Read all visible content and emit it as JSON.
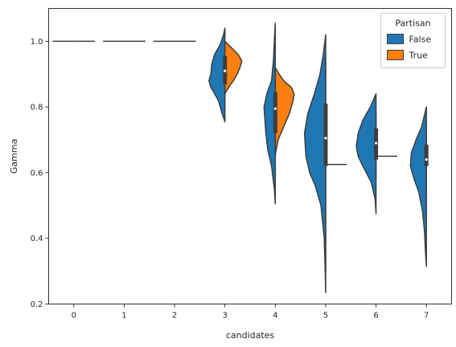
{
  "chart_data": {
    "type": "violin",
    "split": true,
    "xlabel": "candidates",
    "ylabel": "Gamma",
    "categories": [
      "0",
      "1",
      "2",
      "3",
      "4",
      "5",
      "6",
      "7"
    ],
    "ylim": [
      0.2,
      1.1
    ],
    "yticks": [
      0.2,
      0.4,
      0.6,
      0.8,
      1.0
    ],
    "yticklabels": [
      "0.2",
      "0.4",
      "0.6",
      "0.8",
      "1.0"
    ],
    "grid": false,
    "legend": {
      "title": "Partisan",
      "placement": "top-right"
    },
    "series": [
      {
        "name": "False",
        "color": "#1f77b4",
        "violins": [
          {
            "category": "0",
            "degenerate": 1.0
          },
          {
            "category": "1",
            "degenerate": 1.0
          },
          {
            "category": "2",
            "degenerate": 1.0
          },
          {
            "category": "3",
            "profile": [
              [
                0.755,
                0.0
              ],
              [
                0.78,
                0.06
              ],
              [
                0.82,
                0.14
              ],
              [
                0.86,
                0.3
              ],
              [
                0.88,
                0.34
              ],
              [
                0.9,
                0.3
              ],
              [
                0.93,
                0.28
              ],
              [
                0.96,
                0.22
              ],
              [
                0.99,
                0.1
              ],
              [
                1.02,
                0.03
              ],
              [
                1.04,
                0.0
              ]
            ]
          },
          {
            "category": "4",
            "profile": [
              [
                0.505,
                0.0
              ],
              [
                0.55,
                0.02
              ],
              [
                0.62,
                0.08
              ],
              [
                0.67,
                0.16
              ],
              [
                0.72,
                0.2
              ],
              [
                0.76,
                0.22
              ],
              [
                0.8,
                0.24
              ],
              [
                0.84,
                0.18
              ],
              [
                0.88,
                0.08
              ],
              [
                0.94,
                0.04
              ],
              [
                1.0,
                0.02
              ],
              [
                1.055,
                0.0
              ]
            ]
          },
          {
            "category": "5",
            "profile": [
              [
                0.235,
                0.0
              ],
              [
                0.3,
                0.01
              ],
              [
                0.4,
                0.03
              ],
              [
                0.5,
                0.1
              ],
              [
                0.56,
                0.22
              ],
              [
                0.6,
                0.34
              ],
              [
                0.65,
                0.42
              ],
              [
                0.72,
                0.45
              ],
              [
                0.78,
                0.38
              ],
              [
                0.84,
                0.24
              ],
              [
                0.9,
                0.12
              ],
              [
                0.96,
                0.05
              ],
              [
                1.02,
                0.0
              ]
            ]
          },
          {
            "category": "6",
            "profile": [
              [
                0.475,
                0.0
              ],
              [
                0.52,
                0.02
              ],
              [
                0.57,
                0.1
              ],
              [
                0.62,
                0.28
              ],
              [
                0.65,
                0.38
              ],
              [
                0.68,
                0.42
              ],
              [
                0.72,
                0.38
              ],
              [
                0.76,
                0.28
              ],
              [
                0.8,
                0.12
              ],
              [
                0.84,
                0.0
              ]
            ]
          },
          {
            "category": "7",
            "profile": [
              [
                0.315,
                0.0
              ],
              [
                0.36,
                0.02
              ],
              [
                0.42,
                0.04
              ],
              [
                0.48,
                0.08
              ],
              [
                0.54,
                0.16
              ],
              [
                0.58,
                0.26
              ],
              [
                0.62,
                0.34
              ],
              [
                0.66,
                0.32
              ],
              [
                0.7,
                0.22
              ],
              [
                0.74,
                0.1
              ],
              [
                0.8,
                0.0
              ]
            ]
          }
        ]
      },
      {
        "name": "True",
        "color": "#ff7f0e",
        "violins": [
          {
            "category": "0",
            "degenerate": 1.0
          },
          {
            "category": "1",
            "degenerate": 1.0
          },
          {
            "category": "2",
            "degenerate": 1.0
          },
          {
            "category": "3",
            "profile": [
              [
                0.84,
                0.0
              ],
              [
                0.86,
                0.08
              ],
              [
                0.88,
                0.18
              ],
              [
                0.9,
                0.26
              ],
              [
                0.92,
                0.32
              ],
              [
                0.94,
                0.36
              ],
              [
                0.96,
                0.28
              ],
              [
                0.98,
                0.14
              ],
              [
                1.0,
                0.0
              ]
            ]
          },
          {
            "category": "4",
            "profile": [
              [
                0.655,
                0.0
              ],
              [
                0.7,
                0.06
              ],
              [
                0.74,
                0.18
              ],
              [
                0.78,
                0.3
              ],
              [
                0.82,
                0.38
              ],
              [
                0.84,
                0.4
              ],
              [
                0.86,
                0.34
              ],
              [
                0.88,
                0.18
              ],
              [
                0.9,
                0.08
              ],
              [
                0.92,
                0.0
              ]
            ]
          },
          {
            "category": "5",
            "degenerate": 0.625
          },
          {
            "category": "6",
            "degenerate": 0.65
          },
          {
            "category": "7",
            "profile": [
              [
                0.622,
                0.0
              ],
              [
                0.63,
                0.015
              ],
              [
                0.64,
                0.02
              ],
              [
                0.65,
                0.015
              ],
              [
                0.66,
                0.0
              ]
            ]
          }
        ]
      }
    ],
    "inner_box": [
      {
        "category": "3",
        "q1": 0.87,
        "median": 0.91,
        "q3": 0.955,
        "whisker_low": 0.83,
        "whisker_high": 0.96
      },
      {
        "category": "4",
        "q1": 0.72,
        "median": 0.795,
        "q3": 0.845,
        "whisker_low": 0.65,
        "whisker_high": 0.92
      },
      {
        "category": "5",
        "q1": 0.62,
        "median": 0.705,
        "q3": 0.81,
        "whisker_low": 0.3,
        "whisker_high": 0.95
      },
      {
        "category": "6",
        "q1": 0.64,
        "median": 0.69,
        "q3": 0.735,
        "whisker_low": 0.58,
        "whisker_high": 0.78
      },
      {
        "category": "7",
        "q1": 0.62,
        "median": 0.64,
        "q3": 0.685,
        "whisker_low": 0.55,
        "whisker_high": 0.72
      }
    ]
  }
}
